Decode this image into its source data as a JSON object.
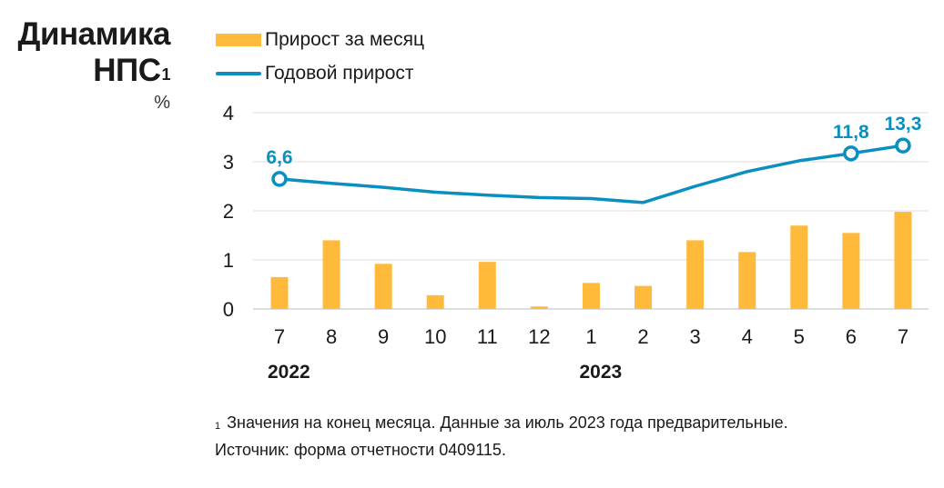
{
  "header": {
    "title_line1": "Динамика",
    "title_line2": "НПС",
    "title_sup": "1",
    "unit": "%"
  },
  "legend": {
    "bar_label": "Прирост за месяц",
    "line_label": "Годовой прирост"
  },
  "colors": {
    "bar": "#ffba3c",
    "line": "#0a8fc0",
    "grid": "#dcdcdc",
    "text": "#1a1a1a"
  },
  "footnote": {
    "marker": "1",
    "line1": "Значения на конец месяца. Данные за июль 2023 года предварительные.",
    "line2": "Источник: форма отчетности 0409115."
  },
  "chart_data": {
    "type": "bar",
    "categories": [
      "7",
      "8",
      "9",
      "10",
      "11",
      "12",
      "1",
      "2",
      "3",
      "4",
      "5",
      "6",
      "7"
    ],
    "years": [
      {
        "label": "2022",
        "category_index": 0
      },
      {
        "label": "2023",
        "category_index": 6
      }
    ],
    "series": [
      {
        "name": "Прирост за месяц",
        "type": "bar",
        "values": [
          0.65,
          1.4,
          0.92,
          0.28,
          0.96,
          0.05,
          0.53,
          0.47,
          1.4,
          1.16,
          1.7,
          1.55,
          1.98
        ]
      },
      {
        "name": "Годовой прирост",
        "type": "line",
        "values_in_axis_units": [
          2.65,
          2.56,
          2.48,
          2.38,
          2.32,
          2.27,
          2.25,
          2.17,
          2.5,
          2.8,
          3.02,
          3.17,
          3.33
        ],
        "point_labels": [
          {
            "index": 0,
            "text": "6,6"
          },
          {
            "index": 11,
            "text": "11,8"
          },
          {
            "index": 12,
            "text": "13,3"
          }
        ]
      }
    ],
    "yticks": [
      0,
      1,
      2,
      3,
      4
    ],
    "ylim": [
      0,
      4
    ],
    "grid": true
  }
}
